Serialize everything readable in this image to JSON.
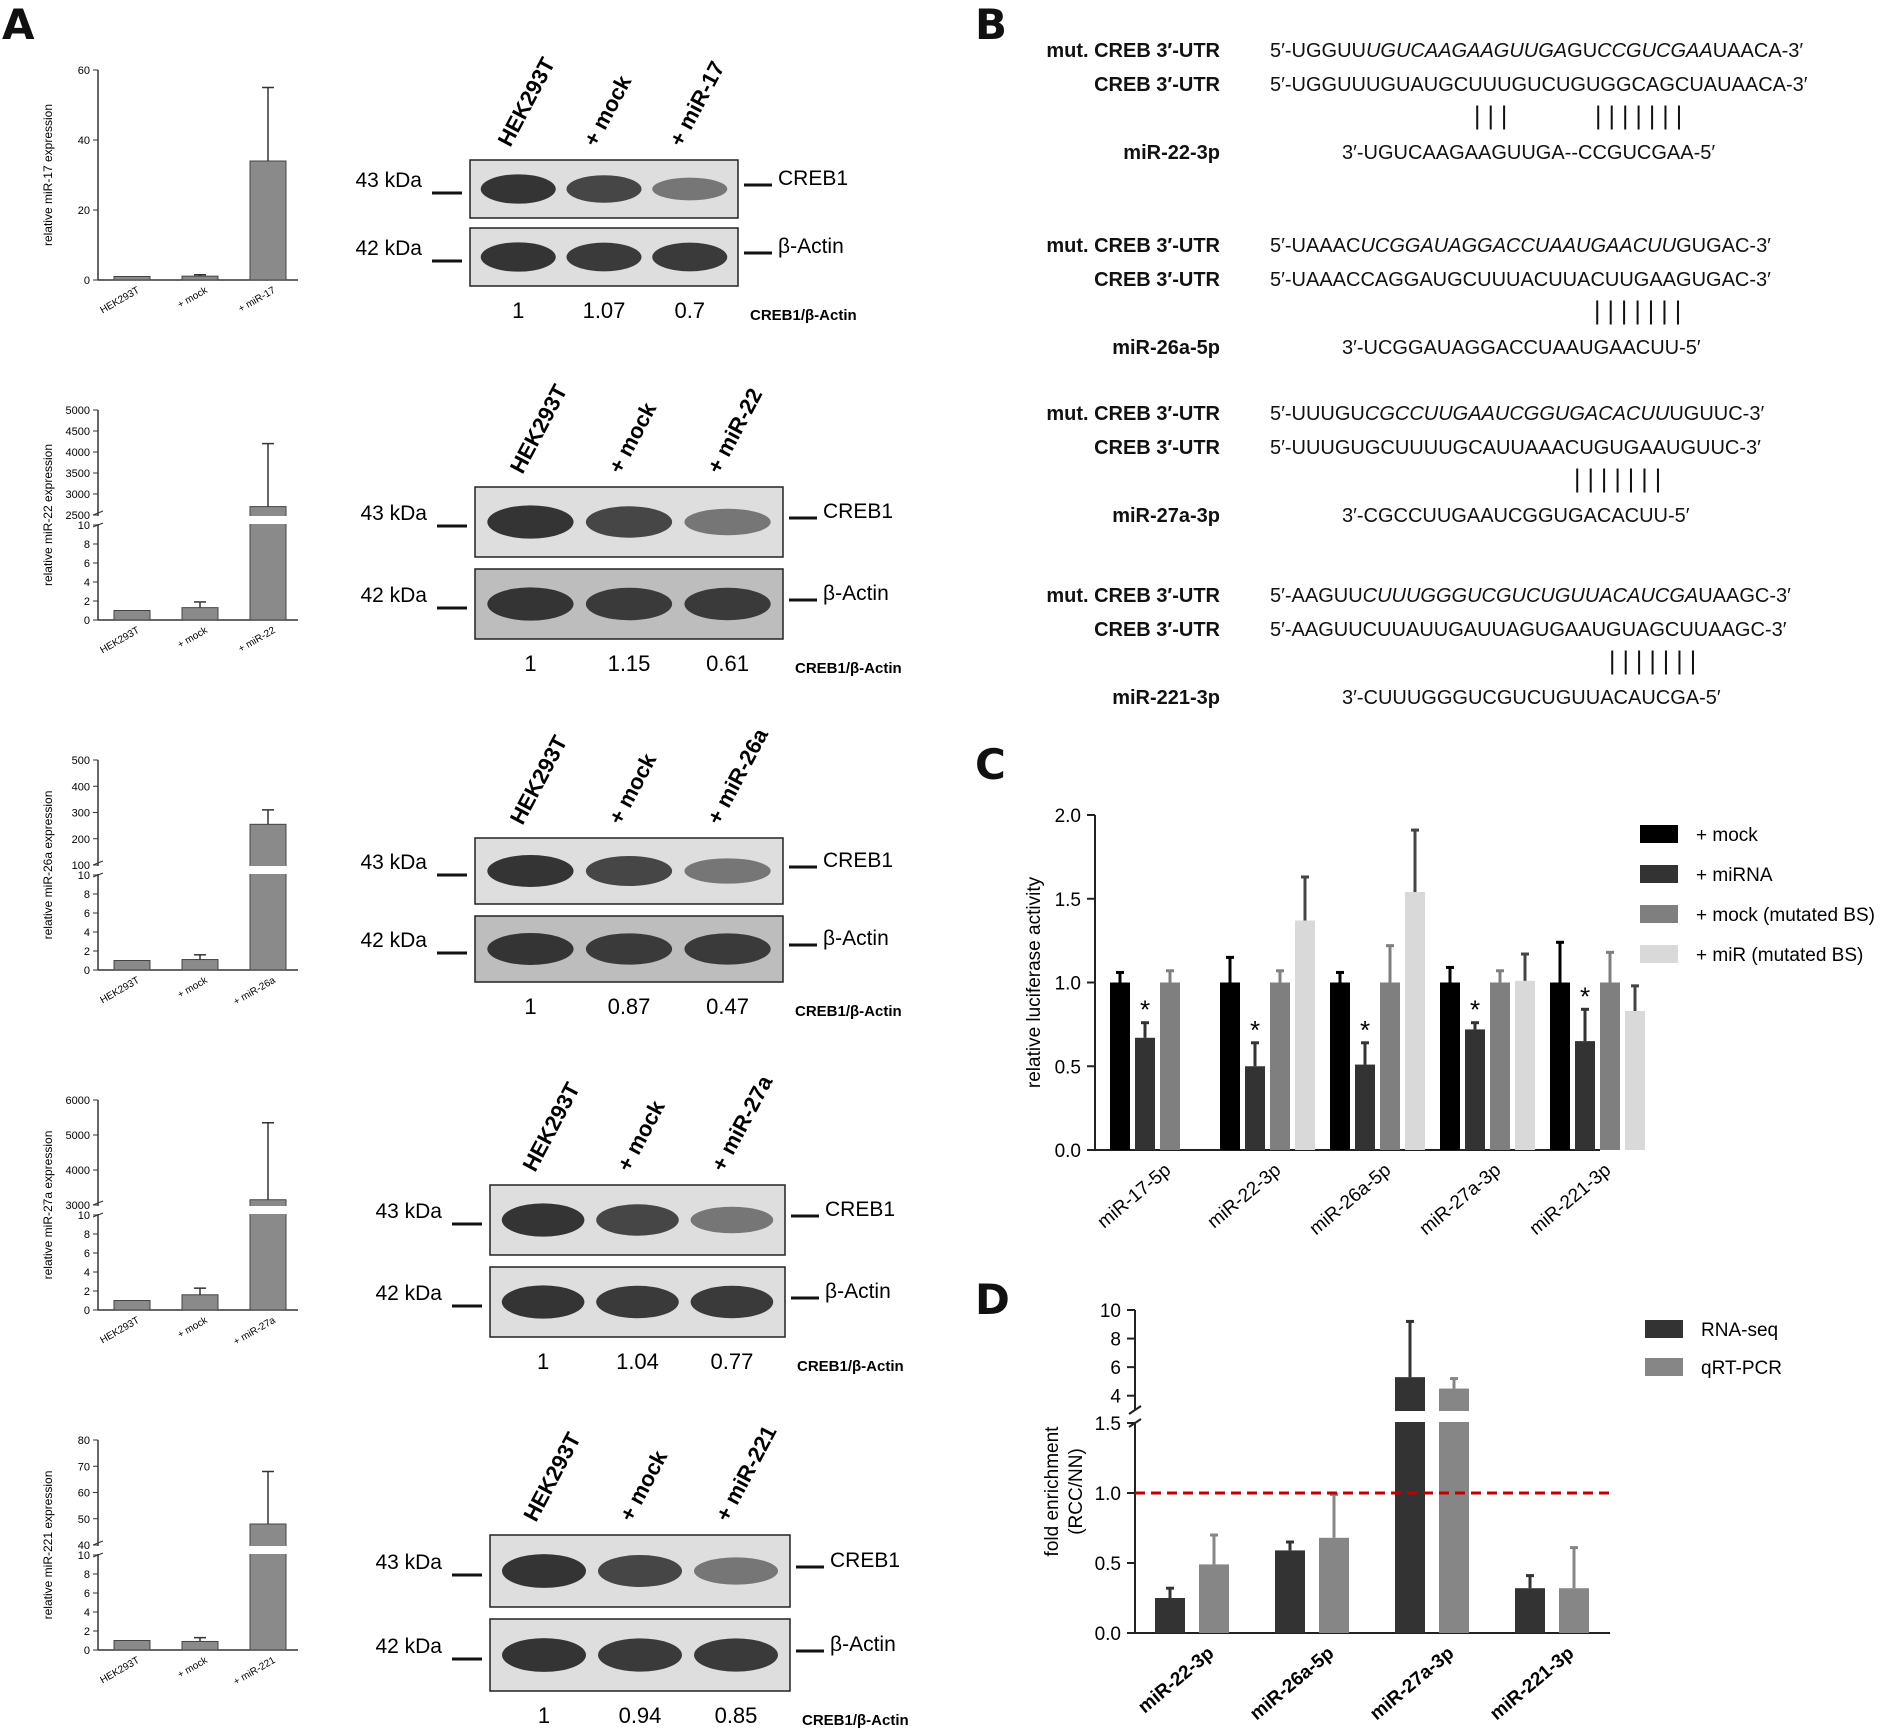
{
  "panels": {
    "A": "A",
    "B": "B",
    "C": "C",
    "D": "D"
  },
  "colors": {
    "bar_gray": "#8a8a8a",
    "mock": "#000000",
    "mirna": "#333333",
    "mock_mut": "#7f7f7f",
    "mir_mut": "#d9d9d9",
    "rnaseq": "#333333",
    "qrtpcr": "#868686",
    "dashed": "#c00000"
  },
  "panel_a": {
    "lanes": [
      "HEK293T",
      "+ mock"
    ],
    "band_labels": {
      "creb1": "CREB1",
      "actin": "β-Actin"
    },
    "ratio_label": "CREB1/β-Actin",
    "experiments": [
      {
        "mirna_lane": "+ miR-17",
        "axis_label": "relative miR-17 expression",
        "mw_top": "43 kDa",
        "mw_bottom": "42 kDa",
        "ratios": [
          "1",
          "1.07",
          "0.7"
        ],
        "chart_data": {
          "type": "bar",
          "categories": [
            "HEK293T",
            "+ mock",
            "+ miR-17"
          ],
          "values": [
            1,
            1.1,
            34
          ],
          "errors": [
            0,
            0.4,
            21
          ],
          "ylabel": "relative miR-17 expression",
          "yticks": [
            "0",
            "20",
            "40",
            "60"
          ],
          "ylim": [
            0,
            60
          ]
        }
      },
      {
        "mirna_lane": "+ miR-22",
        "axis_label": "relative miR-22 expression",
        "mw_top": "43 kDa",
        "mw_bottom": "42 kDa",
        "ratios": [
          "1",
          "1.15",
          "0.61"
        ],
        "chart_data": {
          "type": "bar",
          "categories": [
            "HEK293T",
            "+ mock",
            "+ miR-22"
          ],
          "values": [
            1,
            1.3,
            2700
          ],
          "errors": [
            0,
            0.6,
            1500
          ],
          "ylabel": "relative miR-22 expression",
          "yticks_lower": [
            "0",
            "2",
            "4",
            "6",
            "8",
            "10"
          ],
          "yticks_upper": [
            "2500",
            "3000",
            "3500",
            "4000",
            "4500",
            "5000"
          ],
          "ylim_lower": [
            0,
            10
          ],
          "ylim_upper": [
            2500,
            5000
          ],
          "axis_break": true
        }
      },
      {
        "mirna_lane": "+ miR-26a",
        "axis_label": "relative miR-26a expression",
        "mw_top": "43 kDa",
        "mw_bottom": "42 kDa",
        "ratios": [
          "1",
          "0.87",
          "0.47"
        ],
        "chart_data": {
          "type": "bar",
          "categories": [
            "HEK293T",
            "+ mock",
            "+ miR-26a"
          ],
          "values": [
            1,
            1.1,
            255
          ],
          "errors": [
            0,
            0.5,
            55
          ],
          "ylabel": "relative miR-26a expression",
          "yticks_lower": [
            "0",
            "2",
            "4",
            "6",
            "8",
            "10"
          ],
          "yticks_upper": [
            "100",
            "200",
            "300",
            "400",
            "500"
          ],
          "ylim_lower": [
            0,
            10
          ],
          "ylim_upper": [
            100,
            500
          ],
          "axis_break": true
        }
      },
      {
        "mirna_lane": "+ miR-27a",
        "axis_label": "relative miR-27a expression",
        "mw_top": "43 kDa",
        "mw_bottom": "42 kDa",
        "ratios": [
          "1",
          "1.04",
          "0.77"
        ],
        "chart_data": {
          "type": "bar",
          "categories": [
            "HEK293T",
            "+ mock",
            "+ miR-27a"
          ],
          "values": [
            1,
            1.6,
            3150
          ],
          "errors": [
            0,
            0.7,
            2200
          ],
          "ylabel": "relative miR-27a expression",
          "yticks_lower": [
            "0",
            "2",
            "4",
            "6",
            "8",
            "10"
          ],
          "yticks_upper": [
            "3000",
            "4000",
            "5000",
            "6000"
          ],
          "ylim_lower": [
            0,
            10
          ],
          "ylim_upper": [
            3000,
            6000
          ],
          "axis_break": true
        }
      },
      {
        "mirna_lane": "+ miR-221",
        "axis_label": "relative miR-221 expression",
        "mw_top": "43 kDa",
        "mw_bottom": "42 kDa",
        "ratios": [
          "1",
          "0.94",
          "0.85"
        ],
        "chart_data": {
          "type": "bar",
          "categories": [
            "HEK293T",
            "+ mock",
            "+ miR-221"
          ],
          "values": [
            1,
            0.9,
            48
          ],
          "errors": [
            0,
            0.4,
            20
          ],
          "ylabel": "relative miR-221 expression",
          "yticks_lower": [
            "0",
            "2",
            "4",
            "6",
            "8",
            "10"
          ],
          "yticks_upper": [
            "40",
            "50",
            "60",
            "70",
            "80"
          ],
          "ylim_lower": [
            0,
            10
          ],
          "ylim_upper": [
            40,
            80
          ],
          "axis_break": true
        }
      }
    ]
  },
  "panel_b": {
    "blocks": [
      {
        "rows": [
          {
            "label": "mut. CREB 3′-UTR",
            "prefix": "5′-UGGUU",
            "italic": "UGUCAAGAAGUUGA",
            "mid": "GU",
            "italic2": "CCGUCGAA",
            "suffix": "UAACA-3′"
          },
          {
            "label": "CREB 3′-UTR",
            "seq": "5′-UGGUUUGUAUGCUUUGUCUGUGGCAGCUAUAACA-3′"
          },
          {
            "label": "",
            "seq": "|||      |||||||"
          },
          {
            "label": "miR-22-3p",
            "seq": "3′-UGUCAAGAAGUUGA--CCGUCGAA-5′"
          }
        ]
      },
      {
        "rows": [
          {
            "label": "mut. CREB 3′-UTR",
            "prefix": "5′-UAAAC",
            "italic": "UCGGAUAGGACCUAAUGAACUU",
            "mid": "",
            "italic2": "",
            "suffix": "GUGAC-3′"
          },
          {
            "label": "CREB 3′-UTR",
            "seq": "5′-UAAACCAGGAUGCUUUACUUACUUGAAGUGAC-3′"
          },
          {
            "label": "",
            "seq": "|||||||"
          },
          {
            "label": "miR-26a-5p",
            "seq": "3′-UCGGAUAGGACCUAAUGAACUU-5′"
          }
        ]
      },
      {
        "rows": [
          {
            "label": "mut. CREB 3′-UTR",
            "prefix": "5′-UUUGU",
            "italic": "CGCCUUGAAUCGGUGACACUU",
            "mid": "",
            "italic2": "",
            "suffix": "UGUUC-3′"
          },
          {
            "label": "CREB 3′-UTR",
            "seq": "5′-UUUGUGCUUUUGCAUUAAACUGUGAAUGUUC-3′"
          },
          {
            "label": "",
            "seq": "|||||||"
          },
          {
            "label": "miR-27a-3p",
            "seq": "3′-CGCCUUGAAUCGGUGACACUU-5′"
          }
        ]
      },
      {
        "rows": [
          {
            "label": "mut. CREB 3′-UTR",
            "prefix": "5′-AAGUU",
            "italic": "CUUUGGGUCGUCUGUUACAUCGA",
            "mid": "",
            "italic2": "",
            "suffix": "UAAGC-3′"
          },
          {
            "label": "CREB 3′-UTR",
            "seq": "5′-AAGUUCUUAUUGAUUAGUGAAUGUAGCUUAAGC-3′"
          },
          {
            "label": "",
            "seq": "|||||||"
          },
          {
            "label": "miR-221-3p",
            "seq": "3′-CUUUGGGUCGUCUGUUACAUCGA-5′"
          }
        ]
      }
    ]
  },
  "panel_c": {
    "chart_data": {
      "type": "bar",
      "ylabel": "relative luciferase activity",
      "categories": [
        "miR-17-5p",
        "miR-22-3p",
        "miR-26a-5p",
        "miR-27a-3p",
        "miR-221-3p"
      ],
      "yticks": [
        "0.0",
        "0.5",
        "1.0",
        "1.5",
        "2.0"
      ],
      "ylim": [
        0,
        2.0
      ],
      "legend_position": "right",
      "significance_marker": "*",
      "series": [
        {
          "name": "+ mock",
          "values": [
            1.0,
            1.0,
            1.0,
            1.0,
            1.0
          ],
          "errors": [
            0.06,
            0.15,
            0.06,
            0.09,
            0.24
          ]
        },
        {
          "name": "+ miRNA",
          "values": [
            0.67,
            0.5,
            0.51,
            0.72,
            0.65
          ],
          "errors": [
            0.09,
            0.14,
            0.13,
            0.04,
            0.19
          ],
          "significant": [
            true,
            true,
            true,
            true,
            true
          ]
        },
        {
          "name": "+ mock (mutated BS)",
          "values": [
            1.0,
            1.0,
            1.0,
            1.0,
            1.0
          ],
          "errors": [
            0.07,
            0.07,
            0.22,
            0.07,
            0.18
          ]
        },
        {
          "name": "+ miR (mutated BS)",
          "values": [
            0.0,
            1.37,
            1.54,
            1.01,
            0.83
          ],
          "errors": [
            0.0,
            0.26,
            0.37,
            0.16,
            0.15
          ]
        }
      ]
    }
  },
  "panel_d": {
    "chart_data": {
      "type": "bar",
      "ylabel": "fold enrichment\n(RCC/NN)",
      "categories": [
        "miR-22-3p",
        "miR-26a-5p",
        "miR-27a-3p",
        "miR-221-3p"
      ],
      "yticks_lower": [
        "0.0",
        "0.5",
        "1.0",
        "1.5"
      ],
      "yticks_upper": [
        "4",
        "6",
        "8",
        "10"
      ],
      "ylim_lower": [
        0,
        1.5
      ],
      "ylim_upper": [
        3,
        10
      ],
      "axis_break": true,
      "reference_line": 1.0,
      "legend_position": "top-right",
      "series": [
        {
          "name": "RNA-seq",
          "values": [
            0.25,
            0.59,
            5.3,
            0.32
          ],
          "errors": [
            0.07,
            0.06,
            3.9,
            0.09
          ]
        },
        {
          "name": "qRT-PCR",
          "values": [
            0.49,
            0.68,
            4.5,
            0.32
          ],
          "errors": [
            0.21,
            0.31,
            0.7,
            0.29
          ]
        }
      ]
    }
  }
}
